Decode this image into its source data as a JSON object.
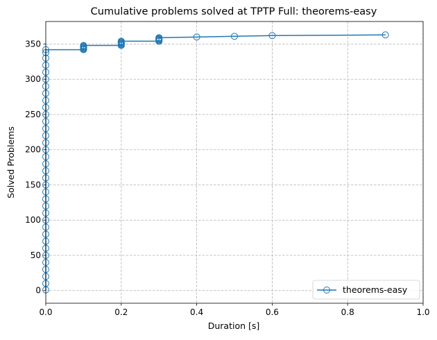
{
  "chart_data": {
    "type": "line",
    "title": "Cumulative problems solved at TPTP Full: theorems-easy",
    "xlabel": "Duration [s]",
    "ylabel": "Solved Problems",
    "xlim": [
      0.0,
      1.0
    ],
    "ylim": [
      -18,
      382
    ],
    "xticks": [
      0.0,
      0.2,
      0.4,
      0.6,
      0.8,
      1.0
    ],
    "xtick_labels": [
      "0.0",
      "0.2",
      "0.4",
      "0.6",
      "0.8",
      "1.0"
    ],
    "yticks": [
      0,
      50,
      100,
      150,
      200,
      250,
      300,
      350
    ],
    "ytick_labels": [
      "0",
      "50",
      "100",
      "150",
      "200",
      "250",
      "300",
      "350"
    ],
    "grid": true,
    "legend_position": "lower-right",
    "series": [
      {
        "name": "theorems-easy",
        "color": "#1f77b4",
        "marker": "open-circle",
        "x": [
          0.0,
          0.0,
          0.0,
          0.0,
          0.0,
          0.0,
          0.0,
          0.0,
          0.0,
          0.0,
          0.0,
          0.0,
          0.0,
          0.0,
          0.0,
          0.0,
          0.0,
          0.0,
          0.0,
          0.0,
          0.0,
          0.0,
          0.0,
          0.0,
          0.0,
          0.0,
          0.0,
          0.0,
          0.0,
          0.0,
          0.0,
          0.0,
          0.0,
          0.0,
          0.0,
          0.0,
          0.1,
          0.1,
          0.1,
          0.1,
          0.1,
          0.1,
          0.1,
          0.2,
          0.2,
          0.2,
          0.2,
          0.2,
          0.2,
          0.2,
          0.3,
          0.3,
          0.3,
          0.3,
          0.3,
          0.3,
          0.4,
          0.5,
          0.6,
          0.9
        ],
        "y": [
          1,
          10,
          20,
          30,
          40,
          50,
          60,
          70,
          80,
          90,
          100,
          110,
          120,
          130,
          140,
          150,
          160,
          170,
          180,
          190,
          200,
          210,
          220,
          230,
          240,
          250,
          260,
          270,
          280,
          290,
          300,
          310,
          320,
          330,
          338,
          342,
          342,
          343,
          344,
          345,
          346,
          347,
          348,
          348,
          349,
          350,
          351,
          352,
          353,
          354,
          354,
          355,
          356,
          357,
          358,
          359,
          360,
          361,
          362,
          363
        ]
      }
    ]
  }
}
